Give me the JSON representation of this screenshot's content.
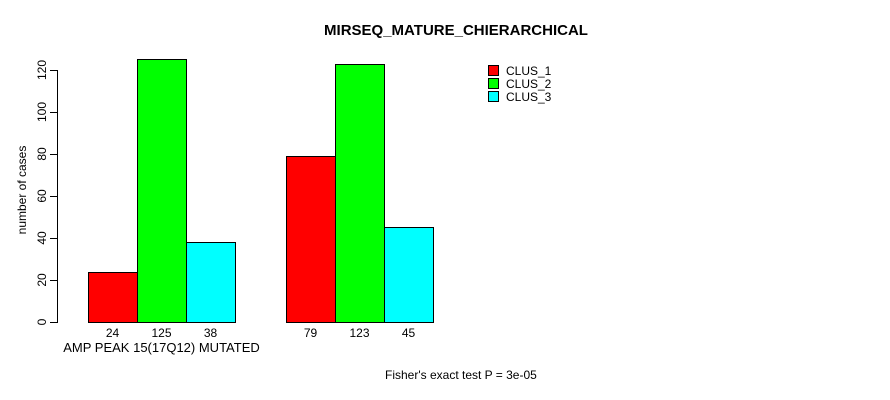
{
  "chart_data": {
    "type": "bar",
    "title": "MIRSEQ_MATURE_CHIERARCHICAL",
    "xlabel": "",
    "ylabel": "number of cases",
    "ylim": [
      0,
      120
    ],
    "yticks": [
      0,
      20,
      40,
      60,
      80,
      100,
      120
    ],
    "grid": false,
    "legend_position": "topright",
    "categories": [
      "AMP PEAK 15(17Q12) MUTATED",
      ""
    ],
    "series": [
      {
        "name": "CLUS_1",
        "color": "#ff0000",
        "values": [
          24,
          79
        ]
      },
      {
        "name": "CLUS_2",
        "color": "#00ff00",
        "values": [
          125,
          123
        ]
      },
      {
        "name": "CLUS_3",
        "color": "#00ffff",
        "values": [
          38,
          45
        ]
      }
    ],
    "bar_value_labels": [
      [
        24,
        125,
        38
      ],
      [
        79,
        123,
        45
      ]
    ],
    "footnote": "Fisher's exact test P = 3e-05"
  }
}
